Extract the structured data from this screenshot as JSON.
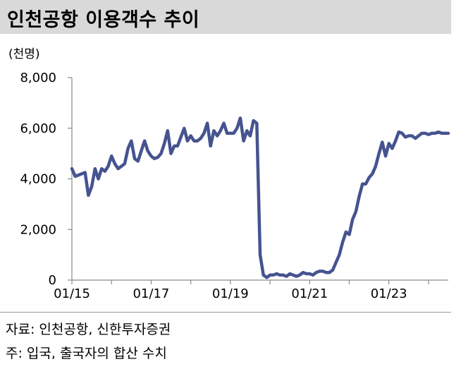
{
  "header": {
    "title": "인천공항 이용객수 추이"
  },
  "chart_data": {
    "type": "line",
    "unit_label": "(천명)",
    "y_ticks": [
      "8,000",
      "6,000",
      "4,000",
      "2,000",
      "0"
    ],
    "y_tick_values": [
      8000,
      6000,
      4000,
      2000,
      0
    ],
    "x_ticks": [
      "01/15",
      "01/17",
      "01/19",
      "01/21",
      "01/23"
    ],
    "x_tick_values": [
      "2015-01",
      "2017-01",
      "2019-01",
      "2021-01",
      "2023-01"
    ],
    "ylim": [
      0,
      8000
    ],
    "xlim": [
      "2015-01",
      "2024-07"
    ],
    "grid": false,
    "line_color": "#465390",
    "series": [
      {
        "x": [
          "2015-01",
          "2015-02",
          "2015-03",
          "2015-04",
          "2015-05",
          "2015-06",
          "2015-07",
          "2015-08",
          "2015-09",
          "2015-10",
          "2015-11",
          "2015-12",
          "2016-01",
          "2016-02",
          "2016-03",
          "2016-04",
          "2016-05",
          "2016-06",
          "2016-07",
          "2016-08",
          "2016-09",
          "2016-10",
          "2016-11",
          "2016-12",
          "2017-01",
          "2017-02",
          "2017-03",
          "2017-04",
          "2017-05",
          "2017-06",
          "2017-07",
          "2017-08",
          "2017-09",
          "2017-10",
          "2017-11",
          "2017-12",
          "2018-01",
          "2018-02",
          "2018-03",
          "2018-04",
          "2018-05",
          "2018-06",
          "2018-07",
          "2018-08",
          "2018-09",
          "2018-10",
          "2018-11",
          "2018-12",
          "2019-01",
          "2019-02",
          "2019-03",
          "2019-04",
          "2019-05",
          "2019-06",
          "2019-07",
          "2019-08",
          "2019-09",
          "2019-10",
          "2019-11",
          "2019-12",
          "2020-01",
          "2020-02",
          "2020-03",
          "2020-04",
          "2020-05",
          "2020-06",
          "2020-07",
          "2020-08",
          "2020-09",
          "2020-10",
          "2020-11",
          "2020-12",
          "2021-01",
          "2021-02",
          "2021-03",
          "2021-04",
          "2021-05",
          "2021-06",
          "2021-07",
          "2021-08",
          "2021-09",
          "2021-10",
          "2021-11",
          "2021-12",
          "2022-01",
          "2022-02",
          "2022-03",
          "2022-04",
          "2022-05",
          "2022-06",
          "2022-07",
          "2022-08",
          "2022-09",
          "2022-10",
          "2022-11",
          "2022-12",
          "2023-01",
          "2023-02",
          "2023-03",
          "2023-04",
          "2023-05",
          "2023-06",
          "2023-07",
          "2023-08",
          "2023-09",
          "2023-10",
          "2023-11",
          "2023-12",
          "2024-01",
          "2024-02",
          "2024-03",
          "2024-04",
          "2024-05",
          "2024-06",
          "2024-07"
        ],
        "values": [
          4400,
          4100,
          4150,
          4200,
          4250,
          3350,
          3700,
          4400,
          4000,
          4400,
          4300,
          4500,
          4900,
          4600,
          4400,
          4500,
          4600,
          5200,
          5500,
          4800,
          4700,
          5100,
          5500,
          5100,
          4900,
          4800,
          4850,
          5000,
          5400,
          5900,
          5000,
          5300,
          5300,
          5650,
          6000,
          5500,
          5700,
          5500,
          5500,
          5600,
          5800,
          6200,
          5300,
          5900,
          5700,
          5900,
          6200,
          5800,
          5800,
          5800,
          6000,
          6400,
          5500,
          5900,
          5700,
          6300,
          6200,
          1000,
          200,
          100,
          200,
          200,
          250,
          200,
          200,
          150,
          250,
          200,
          150,
          200,
          300,
          250,
          250,
          200,
          300,
          350,
          350,
          300,
          300,
          400,
          700,
          1000,
          1500,
          1900,
          1800,
          2400,
          2700,
          3300,
          3800,
          3800,
          4050,
          4200,
          4500,
          5000,
          5450,
          4900,
          5400,
          5200,
          5500,
          5850,
          5800,
          5650,
          5700,
          5700,
          5600,
          5700,
          5800,
          5800,
          5750,
          5800,
          5800,
          5850,
          5800,
          5800,
          5800
        ]
      }
    ]
  },
  "footer": {
    "source": "자료: 인천공항, 신한투자증권",
    "note": "주: 입국, 출국자의 합산 수치"
  }
}
